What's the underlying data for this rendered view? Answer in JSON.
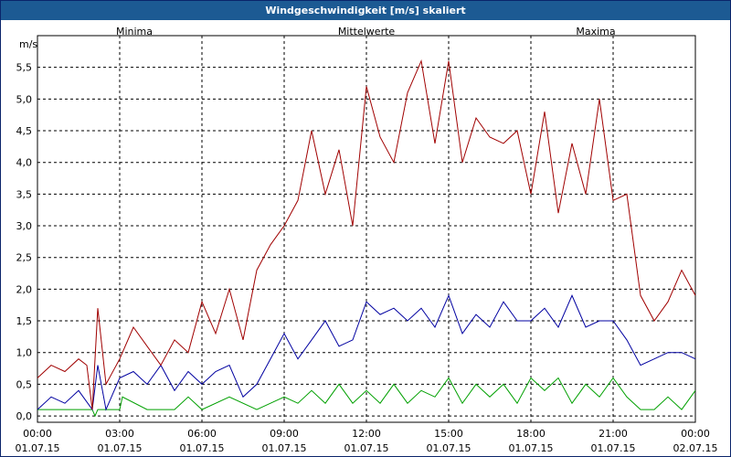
{
  "window": {
    "title": "Windgeschwindigkeit [m/s] skaliert"
  },
  "chart_data": {
    "type": "line",
    "title": "Windgeschwindigkeit [m/s] skaliert",
    "ylabel": "m/s",
    "ylim": [
      -0.1,
      6.0
    ],
    "yticks": [
      0.0,
      0.5,
      1.0,
      1.5,
      2.0,
      2.5,
      3.0,
      3.5,
      4.0,
      4.5,
      5.0,
      5.5
    ],
    "ytick_labels": [
      "0,0",
      "0,5",
      "1,0",
      "1,5",
      "2,0",
      "2,5",
      "3,0",
      "3,5",
      "4,0",
      "4,5",
      "5,0",
      "5,5"
    ],
    "xlim": [
      0,
      24
    ],
    "xticks": [
      0,
      3,
      6,
      9,
      12,
      15,
      18,
      21,
      24
    ],
    "xtick_times": [
      "00:00",
      "03:00",
      "06:00",
      "09:00",
      "12:00",
      "15:00",
      "18:00",
      "21:00",
      "00:00"
    ],
    "xtick_dates": [
      "01.07.15",
      "01.07.15",
      "01.07.15",
      "01.07.15",
      "01.07.15",
      "01.07.15",
      "01.07.15",
      "01.07.15",
      "02.07.15"
    ],
    "grid": true,
    "legend": [
      "Minima",
      "Mittelwerte",
      "Maxima"
    ],
    "series": [
      {
        "name": "Minima",
        "color": "#00a000",
        "x": [
          0,
          1,
          2,
          2.1,
          2.2,
          3,
          3.1,
          4,
          5,
          5.5,
          6,
          7,
          8,
          8.5,
          9,
          9.5,
          10,
          10.5,
          11,
          11.5,
          12,
          12.5,
          13,
          13.5,
          14,
          14.5,
          15,
          15.5,
          16,
          16.5,
          17,
          17.5,
          18,
          18.5,
          19,
          19.5,
          20,
          20.5,
          21,
          21.5,
          22,
          22.5,
          23,
          23.5,
          24
        ],
        "values": [
          0.1,
          0.1,
          0.1,
          0.0,
          0.1,
          0.1,
          0.3,
          0.1,
          0.1,
          0.3,
          0.1,
          0.3,
          0.1,
          0.2,
          0.3,
          0.2,
          0.4,
          0.2,
          0.5,
          0.2,
          0.4,
          0.2,
          0.5,
          0.2,
          0.4,
          0.3,
          0.6,
          0.2,
          0.5,
          0.3,
          0.5,
          0.2,
          0.6,
          0.4,
          0.6,
          0.2,
          0.5,
          0.3,
          0.6,
          0.3,
          0.1,
          0.1,
          0.3,
          0.1,
          0.4
        ]
      },
      {
        "name": "Mittelwerte",
        "color": "#0000a0",
        "x": [
          0,
          0.5,
          1,
          1.5,
          2,
          2.2,
          2.5,
          3,
          3.5,
          4,
          4.5,
          5,
          5.5,
          6,
          6.5,
          7,
          7.5,
          8,
          8.5,
          9,
          9.5,
          10,
          10.5,
          11,
          11.5,
          12,
          12.5,
          13,
          13.5,
          14,
          14.5,
          15,
          15.5,
          16,
          16.5,
          17,
          17.5,
          18,
          18.5,
          19,
          19.5,
          20,
          20.5,
          21,
          21.5,
          22,
          22.5,
          23,
          23.5,
          24
        ],
        "values": [
          0.1,
          0.3,
          0.2,
          0.4,
          0.1,
          0.8,
          0.1,
          0.6,
          0.7,
          0.5,
          0.8,
          0.4,
          0.7,
          0.5,
          0.7,
          0.8,
          0.3,
          0.5,
          0.9,
          1.3,
          0.9,
          1.2,
          1.5,
          1.1,
          1.2,
          1.8,
          1.6,
          1.7,
          1.5,
          1.7,
          1.4,
          1.9,
          1.3,
          1.6,
          1.4,
          1.8,
          1.5,
          1.5,
          1.7,
          1.4,
          1.9,
          1.4,
          1.5,
          1.5,
          1.2,
          0.8,
          0.9,
          1.0,
          1.0,
          0.9
        ]
      },
      {
        "name": "Maxima",
        "color": "#a00000",
        "x": [
          0,
          0.5,
          1,
          1.5,
          1.8,
          2,
          2.2,
          2.5,
          3,
          3.5,
          4,
          4.5,
          5,
          5.5,
          6,
          6.5,
          7,
          7.5,
          8,
          8.5,
          9,
          9.5,
          10,
          10.5,
          11,
          11.5,
          12,
          12.5,
          13,
          13.5,
          14,
          14.5,
          15,
          15.5,
          16,
          16.5,
          17,
          17.5,
          18,
          18.5,
          19,
          19.5,
          20,
          20.5,
          21,
          21.5,
          22,
          22.5,
          23,
          23.5,
          24
        ],
        "values": [
          0.6,
          0.8,
          0.7,
          0.9,
          0.8,
          0.1,
          1.7,
          0.5,
          0.9,
          1.4,
          1.1,
          0.8,
          1.2,
          1.0,
          1.8,
          1.3,
          2.0,
          1.2,
          2.3,
          2.7,
          3.0,
          3.4,
          4.5,
          3.5,
          4.2,
          3.0,
          5.2,
          4.4,
          4.0,
          5.1,
          5.6,
          4.3,
          5.6,
          4.0,
          4.7,
          4.4,
          4.3,
          4.5,
          3.5,
          4.8,
          3.2,
          4.3,
          3.5,
          5.0,
          3.4,
          3.5,
          1.9,
          1.5,
          1.8,
          2.3,
          1.9
        ]
      }
    ]
  }
}
